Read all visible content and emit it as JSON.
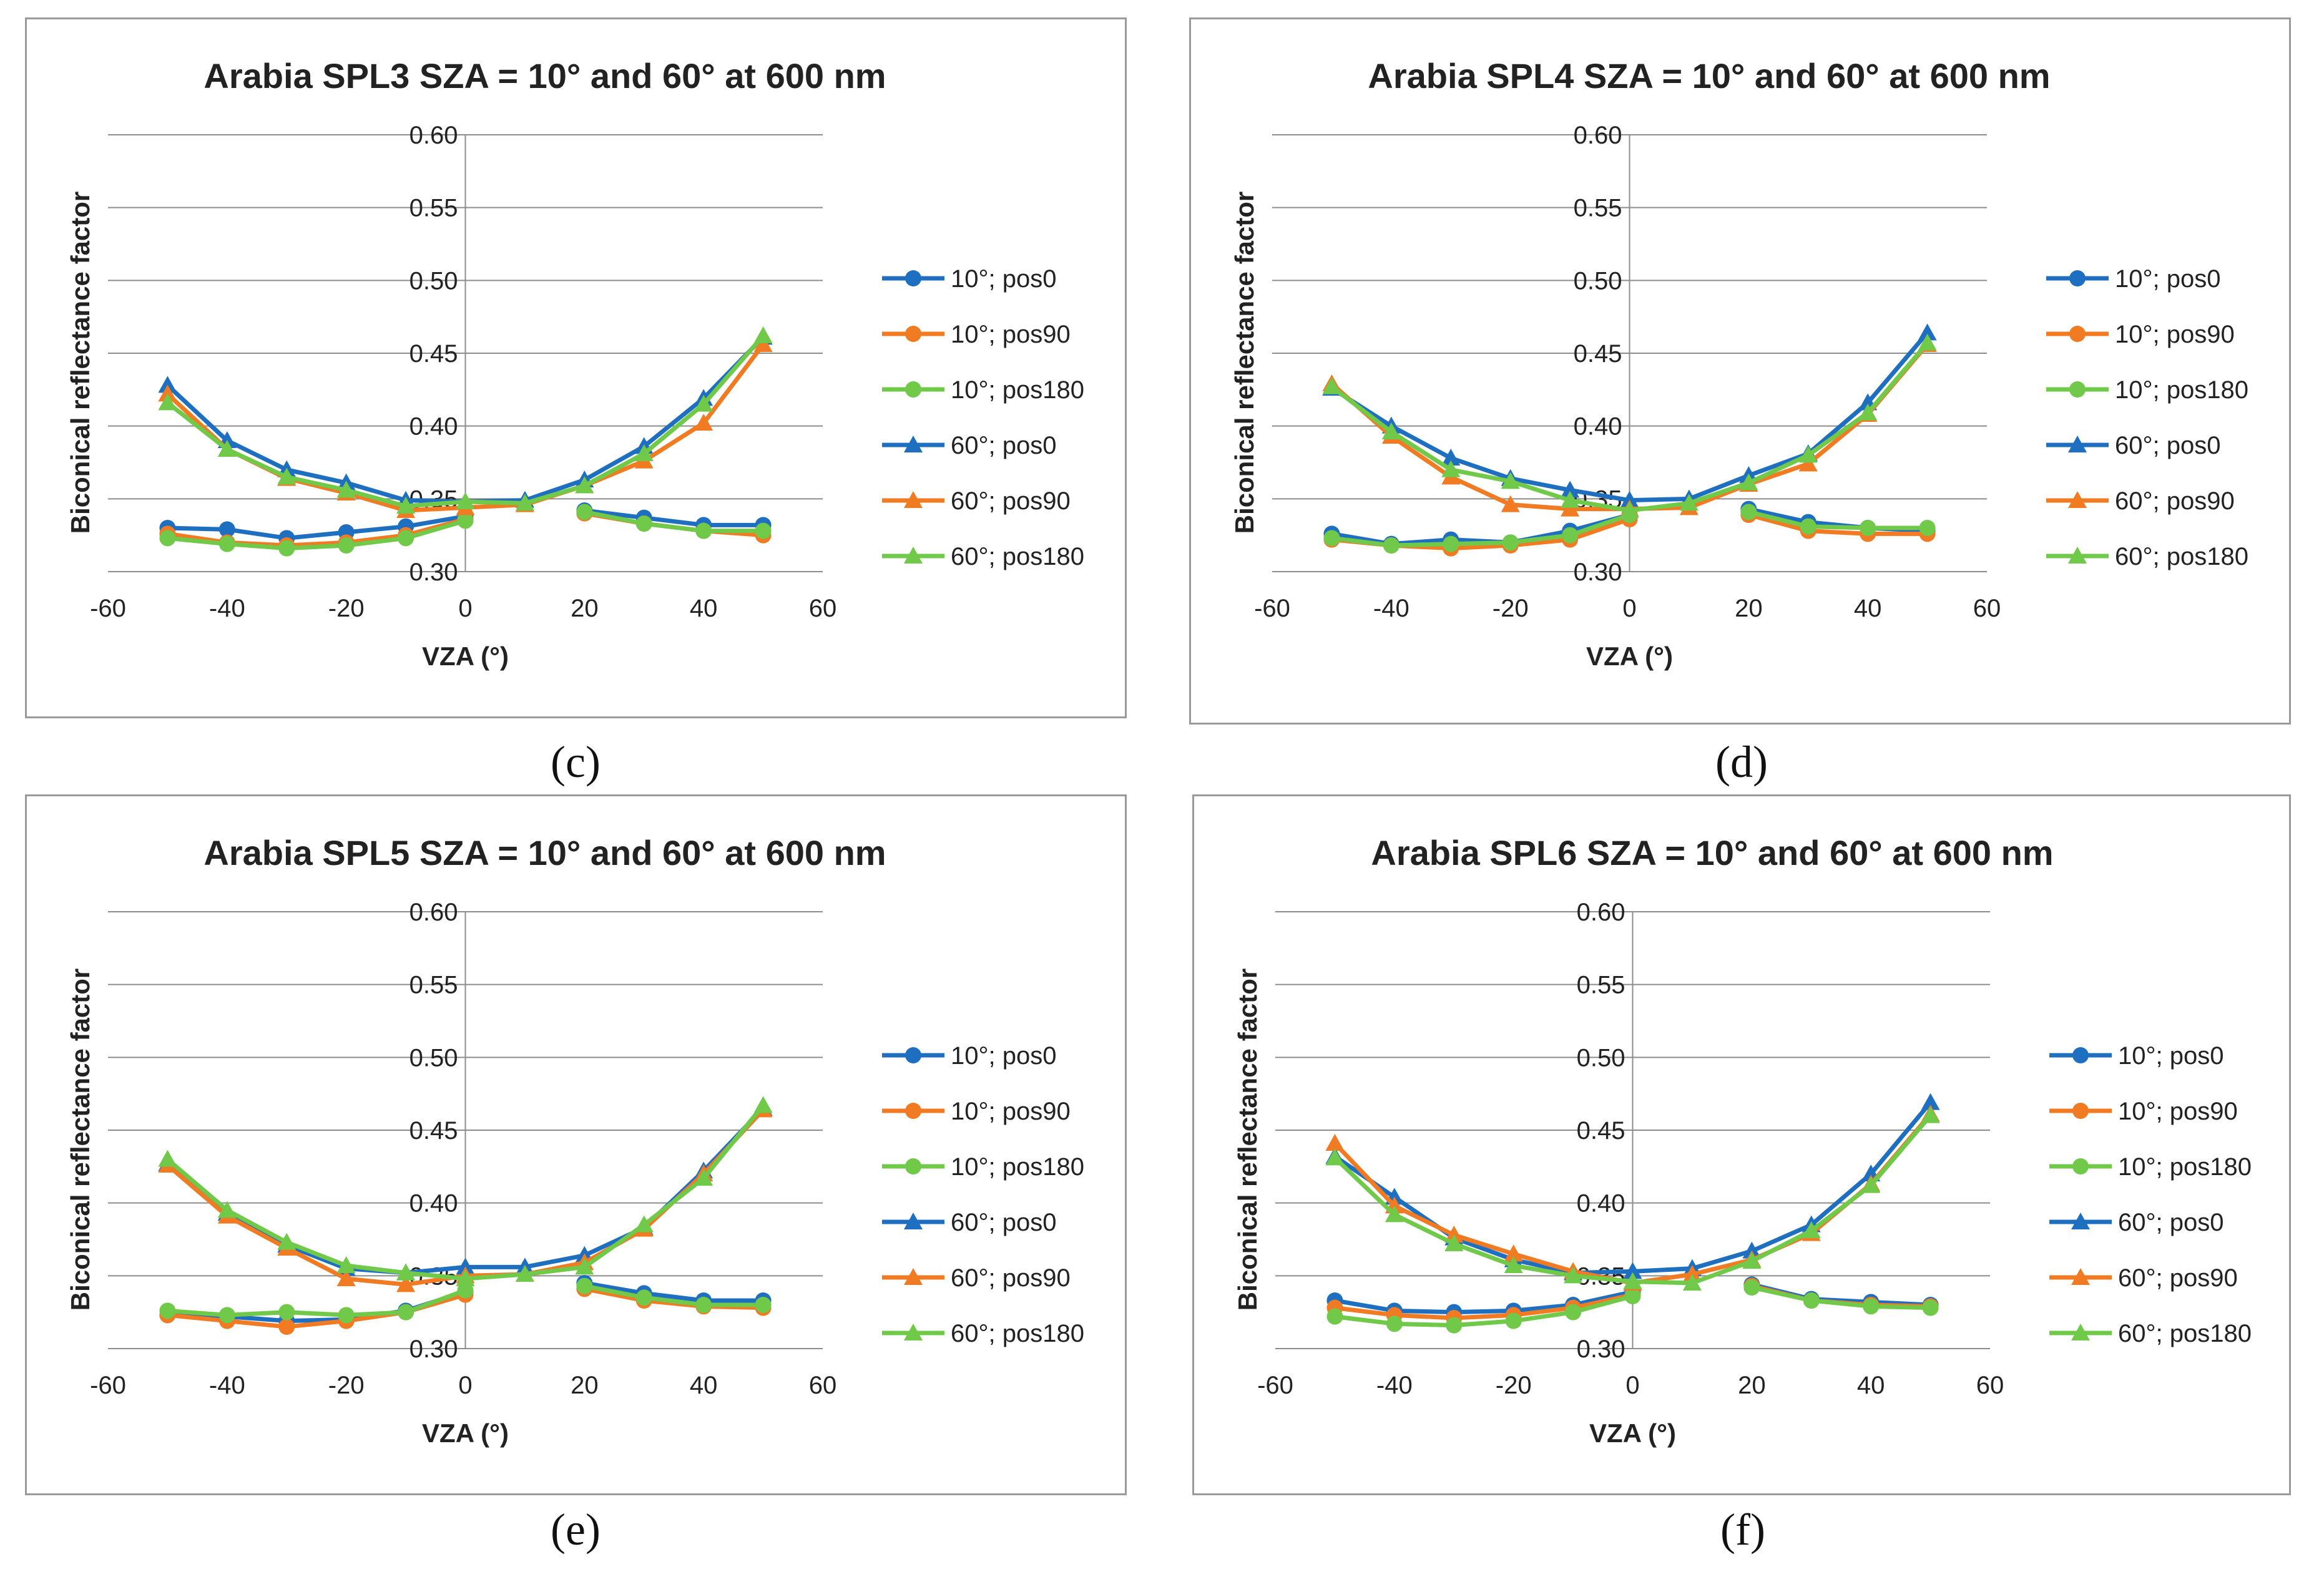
{
  "colors": {
    "blue": "#1f6fc0",
    "orange": "#f07b22",
    "green": "#71c94a",
    "grid": "#8c8c8c",
    "text": "#222222"
  },
  "charts": [
    {
      "caption": "(c)",
      "chart_data": {
        "type": "line",
        "title": "Arabia SPL3 SZA = 10° and 60° at 600 nm",
        "xlabel": "VZA (°)",
        "ylabel": "Biconical reflectance factor",
        "xlim": [
          -60,
          60
        ],
        "ylim": [
          0.3,
          0.6
        ],
        "xticks": [
          "-60",
          "-40",
          "-20",
          "0",
          "20",
          "40",
          "60"
        ],
        "yticks": [
          "0.30",
          "0.35",
          "0.40",
          "0.45",
          "0.50",
          "0.55",
          "0.60"
        ],
        "x": [
          -50,
          -40,
          -30,
          -20,
          -10,
          0,
          10,
          20,
          30,
          40,
          50
        ],
        "series": [
          {
            "name": "10°; pos0",
            "marker": "circle",
            "color": "blue",
            "values": [
              0.33,
              0.329,
              0.323,
              0.327,
              0.331,
              0.338,
              null,
              0.342,
              0.337,
              0.332,
              0.332
            ]
          },
          {
            "name": "10°; pos90",
            "marker": "circle",
            "color": "orange",
            "values": [
              0.326,
              0.32,
              0.318,
              0.32,
              0.325,
              0.336,
              null,
              0.34,
              0.333,
              0.328,
              0.325
            ]
          },
          {
            "name": "10°; pos180",
            "marker": "circle",
            "color": "green",
            "values": [
              0.323,
              0.319,
              0.316,
              0.318,
              0.323,
              0.335,
              null,
              0.341,
              0.333,
              0.328,
              0.328
            ]
          },
          {
            "name": "60°; pos0",
            "marker": "triangle",
            "color": "blue",
            "values": [
              0.428,
              0.39,
              0.37,
              0.361,
              0.349,
              0.348,
              0.349,
              0.363,
              0.386,
              0.419,
              0.461
            ]
          },
          {
            "name": "60°; pos90",
            "marker": "triangle",
            "color": "orange",
            "values": [
              0.422,
              0.384,
              0.364,
              0.354,
              0.342,
              0.344,
              0.346,
              0.359,
              0.376,
              0.402,
              0.456
            ]
          },
          {
            "name": "60°; pos180",
            "marker": "triangle",
            "color": "green",
            "values": [
              0.416,
              0.384,
              0.365,
              0.356,
              0.345,
              0.348,
              0.347,
              0.359,
              0.381,
              0.415,
              0.462
            ]
          }
        ]
      }
    },
    {
      "caption": "(d)",
      "chart_data": {
        "type": "line",
        "title": "Arabia SPL4 SZA = 10° and 60° at 600 nm",
        "xlabel": "VZA (°)",
        "ylabel": "Biconical reflectance factor",
        "xlim": [
          -60,
          60
        ],
        "ylim": [
          0.3,
          0.6
        ],
        "xticks": [
          "-60",
          "-40",
          "-20",
          "0",
          "20",
          "40",
          "60"
        ],
        "yticks": [
          "0.30",
          "0.35",
          "0.40",
          "0.45",
          "0.50",
          "0.55",
          "0.60"
        ],
        "x": [
          -50,
          -40,
          -30,
          -20,
          -10,
          0,
          10,
          20,
          30,
          40,
          50
        ],
        "series": [
          {
            "name": "10°; pos0",
            "marker": "circle",
            "color": "blue",
            "values": [
              0.326,
              0.319,
              0.322,
              0.32,
              0.328,
              0.339,
              null,
              0.343,
              0.334,
              0.33,
              0.328
            ]
          },
          {
            "name": "10°; pos90",
            "marker": "circle",
            "color": "orange",
            "values": [
              0.322,
              0.318,
              0.316,
              0.318,
              0.322,
              0.336,
              null,
              0.339,
              0.328,
              0.326,
              0.326
            ]
          },
          {
            "name": "10°; pos180",
            "marker": "circle",
            "color": "green",
            "values": [
              0.323,
              0.318,
              0.319,
              0.32,
              0.325,
              0.339,
              null,
              0.341,
              0.331,
              0.33,
              0.33
            ]
          },
          {
            "name": "60°; pos0",
            "marker": "triangle",
            "color": "blue",
            "values": [
              0.426,
              0.4,
              0.378,
              0.364,
              0.356,
              0.349,
              0.35,
              0.366,
              0.381,
              0.416,
              0.464
            ]
          },
          {
            "name": "60°; pos90",
            "marker": "triangle",
            "color": "orange",
            "values": [
              0.429,
              0.393,
              0.365,
              0.346,
              0.343,
              0.343,
              0.344,
              0.36,
              0.374,
              0.408,
              0.456
            ]
          },
          {
            "name": "60°; pos180",
            "marker": "triangle",
            "color": "green",
            "values": [
              0.427,
              0.396,
              0.37,
              0.362,
              0.349,
              0.342,
              0.347,
              0.361,
              0.38,
              0.409,
              0.457
            ]
          }
        ]
      }
    },
    {
      "caption": "(e)",
      "chart_data": {
        "type": "line",
        "title": "Arabia SPL5 SZA = 10° and 60° at 600 nm",
        "xlabel": "VZA (°)",
        "ylabel": "Biconical reflectance factor",
        "xlim": [
          -60,
          60
        ],
        "ylim": [
          0.3,
          0.6
        ],
        "xticks": [
          "-60",
          "-40",
          "-20",
          "0",
          "20",
          "40",
          "60"
        ],
        "yticks": [
          "0.30",
          "0.35",
          "0.40",
          "0.45",
          "0.50",
          "0.55",
          "0.60"
        ],
        "x": [
          -50,
          -40,
          -30,
          -20,
          -10,
          0,
          10,
          20,
          30,
          40,
          50
        ],
        "series": [
          {
            "name": "10°; pos0",
            "marker": "circle",
            "color": "blue",
            "values": [
              0.323,
              0.322,
              0.319,
              0.32,
              0.326,
              0.339,
              null,
              0.345,
              0.338,
              0.333,
              0.333
            ]
          },
          {
            "name": "10°; pos90",
            "marker": "circle",
            "color": "orange",
            "values": [
              0.323,
              0.319,
              0.315,
              0.319,
              0.325,
              0.337,
              null,
              0.341,
              0.333,
              0.329,
              0.328
            ]
          },
          {
            "name": "10°; pos180",
            "marker": "circle",
            "color": "green",
            "values": [
              0.326,
              0.323,
              0.325,
              0.323,
              0.325,
              0.34,
              null,
              0.343,
              0.335,
              0.33,
              0.33
            ]
          },
          {
            "name": "60°; pos0",
            "marker": "triangle",
            "color": "blue",
            "values": [
              0.427,
              0.393,
              0.371,
              0.355,
              0.352,
              0.356,
              0.356,
              0.364,
              0.383,
              0.422,
              0.465
            ]
          },
          {
            "name": "60°; pos90",
            "marker": "triangle",
            "color": "orange",
            "values": [
              0.426,
              0.391,
              0.369,
              0.348,
              0.344,
              0.35,
              0.351,
              0.359,
              0.382,
              0.42,
              0.464
            ]
          },
          {
            "name": "60°; pos180",
            "marker": "triangle",
            "color": "green",
            "values": [
              0.43,
              0.395,
              0.373,
              0.357,
              0.352,
              0.348,
              0.351,
              0.356,
              0.385,
              0.417,
              0.467
            ]
          }
        ]
      }
    },
    {
      "caption": "(f)",
      "chart_data": {
        "type": "line",
        "title": "Arabia SPL6 SZA = 10° and 60° at 600 nm",
        "xlabel": "VZA (°)",
        "ylabel": "Biconical reflectance factor",
        "xlim": [
          -60,
          60
        ],
        "ylim": [
          0.3,
          0.6
        ],
        "xticks": [
          "-60",
          "-40",
          "-20",
          "0",
          "20",
          "40",
          "60"
        ],
        "yticks": [
          "0.30",
          "0.35",
          "0.40",
          "0.45",
          "0.50",
          "0.55",
          "0.60"
        ],
        "x": [
          -50,
          -40,
          -30,
          -20,
          -10,
          0,
          10,
          20,
          30,
          40,
          50
        ],
        "series": [
          {
            "name": "10°; pos0",
            "marker": "circle",
            "color": "blue",
            "values": [
              0.333,
              0.326,
              0.325,
              0.326,
              0.33,
              0.339,
              null,
              0.344,
              0.334,
              0.332,
              0.33
            ]
          },
          {
            "name": "10°; pos90",
            "marker": "circle",
            "color": "orange",
            "values": [
              0.328,
              0.323,
              0.321,
              0.323,
              0.328,
              0.337,
              null,
              0.343,
              0.333,
              0.33,
              0.329
            ]
          },
          {
            "name": "10°; pos180",
            "marker": "circle",
            "color": "green",
            "values": [
              0.322,
              0.317,
              0.316,
              0.319,
              0.325,
              0.336,
              null,
              0.342,
              0.333,
              0.329,
              0.328
            ]
          },
          {
            "name": "60°; pos0",
            "marker": "triangle",
            "color": "blue",
            "values": [
              0.432,
              0.404,
              0.376,
              0.361,
              0.352,
              0.353,
              0.355,
              0.367,
              0.385,
              0.42,
              0.469
            ]
          },
          {
            "name": "60°; pos90",
            "marker": "triangle",
            "color": "orange",
            "values": [
              0.441,
              0.398,
              0.378,
              0.365,
              0.353,
              0.345,
              0.351,
              0.361,
              0.379,
              0.413,
              0.461
            ]
          },
          {
            "name": "60°; pos180",
            "marker": "triangle",
            "color": "green",
            "values": [
              0.431,
              0.392,
              0.372,
              0.357,
              0.35,
              0.346,
              0.345,
              0.36,
              0.381,
              0.412,
              0.46
            ]
          }
        ]
      }
    }
  ]
}
